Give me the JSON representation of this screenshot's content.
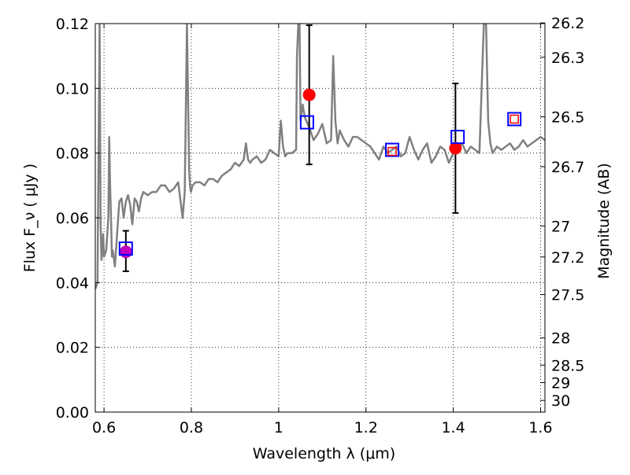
{
  "chart_data": {
    "type": "line",
    "xlabel": "Wavelength  λ (μm)",
    "ylabel": "Flux  F_ν  ( μJy )",
    "ylabel_right": "Magnitude (AB)",
    "xlim": [
      0.58,
      1.61
    ],
    "ylim": [
      0.0,
      0.12
    ],
    "grid": true,
    "x_ticks": [
      0.6,
      0.8,
      1.0,
      1.2,
      1.4,
      1.6
    ],
    "x_tick_labels": [
      "0.6",
      "0.8",
      "1",
      "1.2",
      "1.4",
      "1.6"
    ],
    "y_ticks": [
      0.0,
      0.02,
      0.04,
      0.06,
      0.08,
      0.1,
      0.12
    ],
    "y_tick_labels": [
      "0.00",
      "0.02",
      "0.04",
      "0.06",
      "0.08",
      "0.10",
      "0.12"
    ],
    "right_ticks": [
      {
        "label": "26.2",
        "flux": 0.1202
      },
      {
        "label": "26.3",
        "flux": 0.1096
      },
      {
        "label": "26.5",
        "flux": 0.0912
      },
      {
        "label": "26.7",
        "flux": 0.0758
      },
      {
        "label": "27",
        "flux": 0.0575
      },
      {
        "label": "27.2",
        "flux": 0.0479
      },
      {
        "label": "27.5",
        "flux": 0.0363
      },
      {
        "label": "28",
        "flux": 0.0229
      },
      {
        "label": "28.5",
        "flux": 0.0145
      },
      {
        "label": "29",
        "flux": 0.0091
      },
      {
        "label": "30",
        "flux": 0.0036
      }
    ],
    "series": [
      {
        "kind": "spectrum",
        "color": "#808080",
        "x": [
          0.58,
          0.585,
          0.59,
          0.592,
          0.594,
          0.596,
          0.598,
          0.6,
          0.605,
          0.61,
          0.612,
          0.614,
          0.616,
          0.618,
          0.62,
          0.625,
          0.63,
          0.635,
          0.64,
          0.645,
          0.65,
          0.655,
          0.66,
          0.665,
          0.67,
          0.675,
          0.68,
          0.685,
          0.69,
          0.7,
          0.71,
          0.72,
          0.73,
          0.74,
          0.75,
          0.76,
          0.77,
          0.78,
          0.785,
          0.79,
          0.795,
          0.797,
          0.799,
          0.801,
          0.803,
          0.81,
          0.82,
          0.83,
          0.84,
          0.85,
          0.86,
          0.87,
          0.88,
          0.89,
          0.9,
          0.91,
          0.92,
          0.925,
          0.93,
          0.935,
          0.94,
          0.95,
          0.96,
          0.97,
          0.98,
          0.99,
          1.0,
          1.005,
          1.01,
          1.015,
          1.02,
          1.03,
          1.04,
          1.042,
          1.045,
          1.048,
          1.05,
          1.055,
          1.06,
          1.07,
          1.08,
          1.09,
          1.1,
          1.11,
          1.12,
          1.125,
          1.13,
          1.135,
          1.14,
          1.15,
          1.16,
          1.17,
          1.18,
          1.19,
          1.2,
          1.21,
          1.22,
          1.23,
          1.24,
          1.25,
          1.26,
          1.27,
          1.28,
          1.29,
          1.3,
          1.31,
          1.32,
          1.33,
          1.34,
          1.35,
          1.36,
          1.37,
          1.38,
          1.39,
          1.4,
          1.41,
          1.42,
          1.43,
          1.44,
          1.45,
          1.46,
          1.47,
          1.475,
          1.48,
          1.485,
          1.49,
          1.5,
          1.51,
          1.52,
          1.53,
          1.54,
          1.55,
          1.56,
          1.57,
          1.58,
          1.59,
          1.6,
          1.61
        ],
        "y": [
          0.038,
          0.04,
          0.12,
          0.06,
          0.047,
          0.05,
          0.055,
          0.048,
          0.05,
          0.06,
          0.085,
          0.07,
          0.06,
          0.048,
          0.05,
          0.045,
          0.055,
          0.065,
          0.066,
          0.06,
          0.065,
          0.067,
          0.064,
          0.058,
          0.066,
          0.065,
          0.062,
          0.066,
          0.068,
          0.067,
          0.068,
          0.068,
          0.07,
          0.07,
          0.068,
          0.069,
          0.071,
          0.06,
          0.068,
          0.12,
          0.075,
          0.07,
          0.068,
          0.069,
          0.07,
          0.071,
          0.071,
          0.07,
          0.072,
          0.072,
          0.071,
          0.073,
          0.074,
          0.075,
          0.077,
          0.076,
          0.078,
          0.083,
          0.078,
          0.077,
          0.078,
          0.079,
          0.077,
          0.078,
          0.081,
          0.08,
          0.079,
          0.09,
          0.082,
          0.079,
          0.08,
          0.08,
          0.081,
          0.11,
          0.12,
          0.12,
          0.09,
          0.095,
          0.091,
          0.088,
          0.084,
          0.086,
          0.089,
          0.083,
          0.084,
          0.11,
          0.09,
          0.083,
          0.087,
          0.084,
          0.082,
          0.085,
          0.085,
          0.084,
          0.083,
          0.082,
          0.08,
          0.078,
          0.082,
          0.08,
          0.081,
          0.082,
          0.079,
          0.08,
          0.085,
          0.081,
          0.078,
          0.081,
          0.083,
          0.077,
          0.079,
          0.082,
          0.081,
          0.077,
          0.08,
          0.081,
          0.083,
          0.08,
          0.082,
          0.081,
          0.08,
          0.12,
          0.12,
          0.09,
          0.083,
          0.08,
          0.082,
          0.081,
          0.082,
          0.083,
          0.081,
          0.082,
          0.084,
          0.082,
          0.083,
          0.084,
          0.085,
          0.084
        ]
      },
      {
        "kind": "photometry",
        "color": "#ff0000",
        "points": [
          {
            "x": 1.07,
            "y": 0.098,
            "yerr_low": 0.0765,
            "yerr_high": 0.1195
          },
          {
            "x": 1.405,
            "y": 0.0815,
            "yerr_low": 0.0615,
            "yerr_high": 0.1015
          }
        ]
      },
      {
        "kind": "photometry",
        "color": "#bf00bf",
        "points": [
          {
            "x": 0.65,
            "y": 0.0495,
            "yerr_low": 0.0435,
            "yerr_high": 0.056
          }
        ]
      },
      {
        "kind": "model",
        "color": "#0000ff",
        "marker": "large-open-square",
        "points": [
          {
            "x": 0.65,
            "y": 0.0505
          },
          {
            "x": 1.065,
            "y": 0.0895
          },
          {
            "x": 1.26,
            "y": 0.081
          },
          {
            "x": 1.41,
            "y": 0.085
          },
          {
            "x": 1.54,
            "y": 0.0905
          }
        ]
      },
      {
        "kind": "model",
        "color": "#ff0000",
        "marker": "small-open-square",
        "points": [
          {
            "x": 1.26,
            "y": 0.0805
          },
          {
            "x": 1.54,
            "y": 0.0905
          }
        ]
      }
    ]
  }
}
